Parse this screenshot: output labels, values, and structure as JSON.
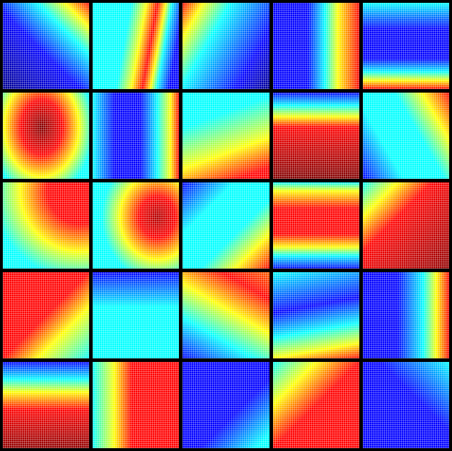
{
  "grid": {
    "rows": 5,
    "columns": 5
  }
}
